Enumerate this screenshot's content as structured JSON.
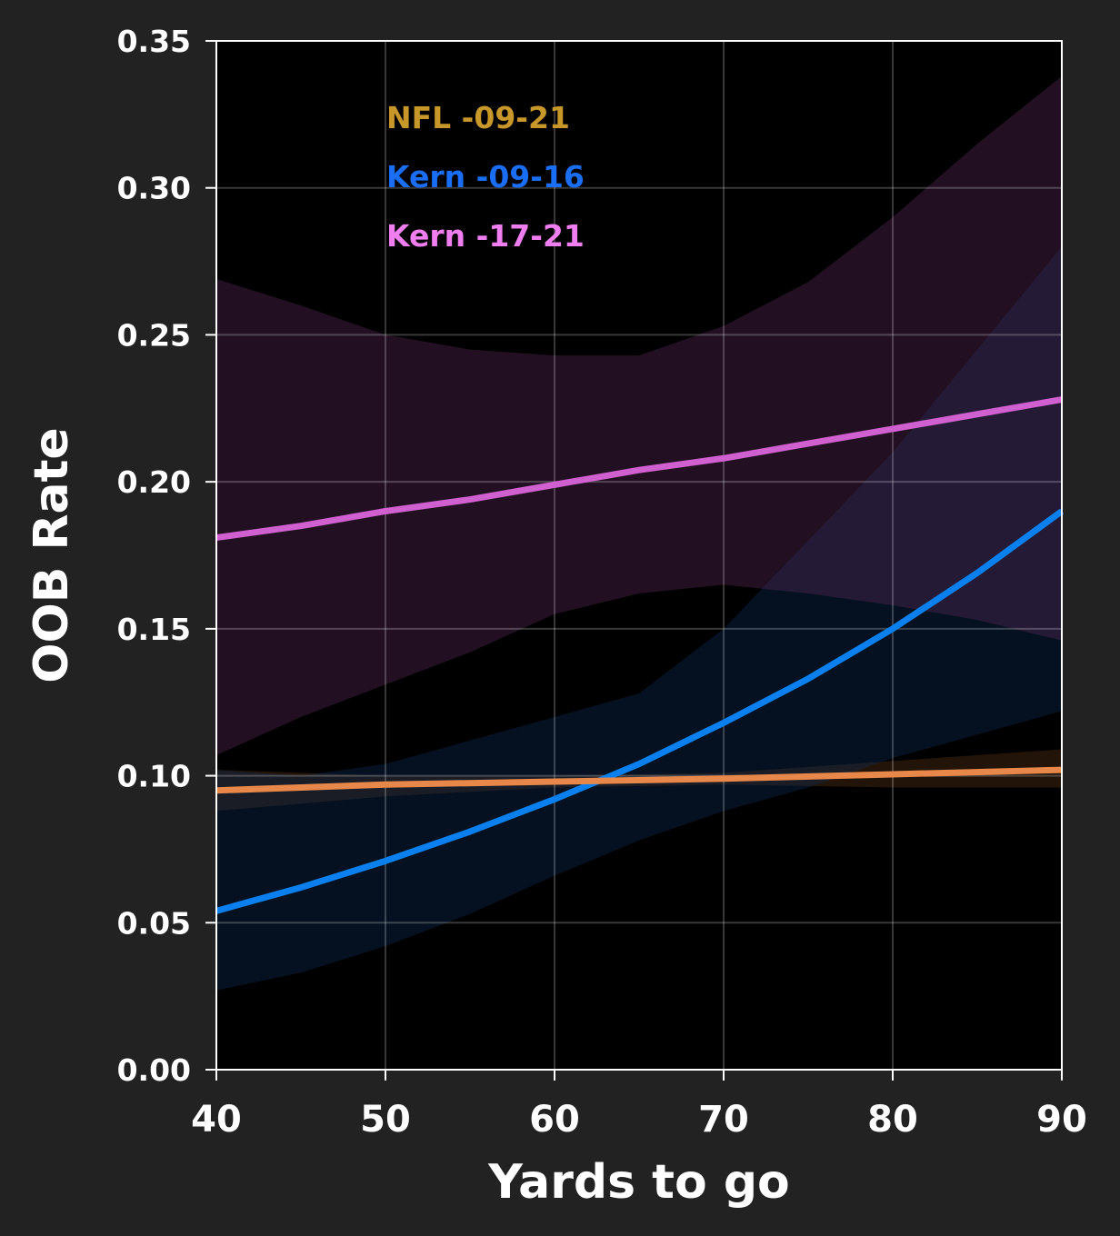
{
  "chart_data": {
    "type": "line",
    "title": "",
    "xlabel": "Yards to go",
    "ylabel": "OOB Rate",
    "xlim": [
      40,
      90
    ],
    "ylim": [
      0,
      0.35
    ],
    "x_ticks": [
      "40",
      "50",
      "60",
      "70",
      "80",
      "90"
    ],
    "y_ticks": [
      "0.00",
      "0.05",
      "0.10",
      "0.15",
      "0.20",
      "0.25",
      "0.30",
      "0.35"
    ],
    "grid": true,
    "legend_position": "top-left",
    "legend": [
      "NFL -09-21",
      "Kern -09-16",
      "Kern -17-21"
    ],
    "series": [
      {
        "name": "NFL -09-21",
        "label_color": "#c8972a",
        "line_color": "#e8874a",
        "band_color": "#5a3418",
        "x": [
          40,
          50,
          60,
          70,
          80,
          90
        ],
        "y": [
          0.095,
          0.097,
          0.098,
          0.099,
          0.1005,
          0.102
        ],
        "lower": [
          0.088,
          0.093,
          0.096,
          0.097,
          0.096,
          0.096
        ],
        "upper": [
          0.102,
          0.1,
          0.1,
          0.101,
          0.105,
          0.109
        ]
      },
      {
        "name": "Kern -09-16",
        "label_color": "#1a6ef5",
        "line_color": "#0a80f0",
        "band_color": "#0c2e55",
        "x": [
          40,
          45,
          50,
          55,
          60,
          65,
          70,
          75,
          80,
          85,
          90
        ],
        "y": [
          0.054,
          0.062,
          0.071,
          0.081,
          0.092,
          0.104,
          0.118,
          0.133,
          0.15,
          0.169,
          0.19
        ],
        "lower": [
          0.027,
          0.033,
          0.042,
          0.053,
          0.066,
          0.078,
          0.088,
          0.096,
          0.106,
          0.114,
          0.122
        ],
        "upper": [
          0.102,
          0.1,
          0.104,
          0.112,
          0.12,
          0.128,
          0.15,
          0.18,
          0.21,
          0.245,
          0.28
        ]
      },
      {
        "name": "Kern -17-21",
        "label_color": "#f07ef0",
        "line_color": "#d060d0",
        "band_color": "#5a2a5a",
        "x": [
          40,
          45,
          50,
          55,
          60,
          65,
          70,
          75,
          80,
          85,
          90
        ],
        "y": [
          0.181,
          0.185,
          0.19,
          0.194,
          0.199,
          0.204,
          0.208,
          0.213,
          0.218,
          0.223,
          0.228
        ],
        "lower": [
          0.107,
          0.12,
          0.131,
          0.142,
          0.155,
          0.162,
          0.165,
          0.162,
          0.158,
          0.153,
          0.146
        ],
        "upper": [
          0.269,
          0.26,
          0.25,
          0.245,
          0.243,
          0.243,
          0.253,
          0.268,
          0.29,
          0.315,
          0.338
        ]
      }
    ]
  }
}
